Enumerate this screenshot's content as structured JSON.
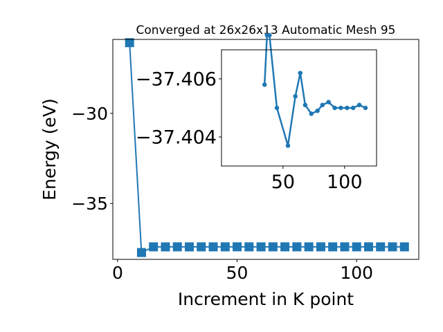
{
  "chart_data": [
    {
      "type": "line",
      "title": "Converged at 26x26x13 Automatic Mesh 95",
      "xlabel": "Increment in K point",
      "ylabel": "Energy (eV)",
      "xlim": [
        -2,
        126
      ],
      "ylim": [
        -38.1,
        -25.9
      ],
      "xticks": [
        0,
        50,
        100
      ],
      "yticks": [
        -30,
        -35
      ],
      "ytick_labels": [
        "−30",
        "−35"
      ],
      "marker": "square",
      "color": "#1f77b4",
      "grid": false,
      "series": [
        {
          "x": [
            5,
            10,
            15,
            20,
            25,
            30,
            35,
            40,
            45,
            50,
            55,
            60,
            65,
            70,
            75,
            80,
            85,
            90,
            95,
            100,
            105,
            110,
            115,
            120
          ],
          "y": [
            -26.08,
            -37.72,
            -37.4055,
            -37.4072,
            -37.4041,
            -37.4064,
            -37.4058,
            -37.4056,
            -37.4046,
            -37.4037,
            -37.4052,
            -37.406,
            -37.4052,
            -37.4047,
            -37.4049,
            -37.4051,
            -37.4052,
            -37.4051,
            -37.405,
            -37.4049,
            -37.4049,
            -37.405,
            -37.405,
            -37.4049
          ]
        }
      ]
    },
    {
      "type": "line",
      "title": "",
      "xlabel": "",
      "ylabel": "",
      "xlim": [
        0,
        126
      ],
      "ylim": [
        -37.403,
        -37.407
      ],
      "xticks": [
        50,
        100
      ],
      "yticks": [
        -37.406,
        -37.404
      ],
      "ytick_labels": [
        "−37.406",
        "−37.404"
      ],
      "marker": "circle",
      "color": "#1f77b4",
      "grid": false,
      "series": [
        {
          "x": [
            35,
            37,
            39,
            45,
            54,
            60,
            64,
            68,
            73,
            78,
            82,
            87,
            92,
            97,
            102,
            107,
            112,
            117
          ],
          "y": [
            -37.4058,
            -37.4075,
            -37.4075,
            -37.405,
            -37.4037,
            -37.4054,
            -37.4062,
            -37.4051,
            -37.4048,
            -37.4049,
            -37.4051,
            -37.4052,
            -37.405,
            -37.405,
            -37.405,
            -37.405,
            -37.4051,
            -37.405
          ]
        }
      ]
    }
  ]
}
